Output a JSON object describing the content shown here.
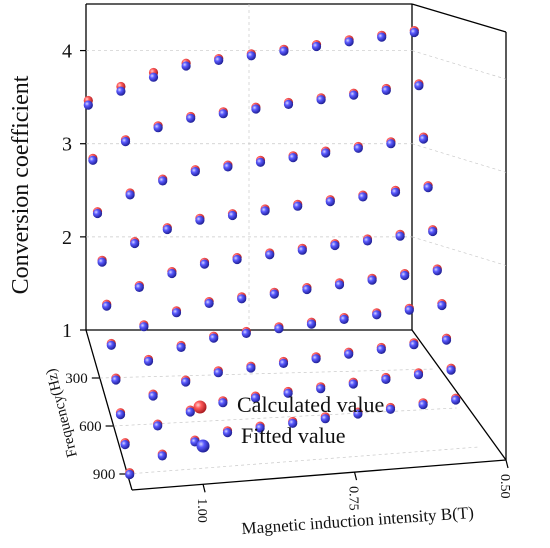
{
  "chart_data": {
    "type": "scatter",
    "dimensions": 3,
    "x_axis": {
      "label": "Magnetic induction intensity B(T)",
      "ticks": [
        "1.00",
        "0.75",
        "0.50"
      ],
      "range": [
        1.0,
        0.5
      ]
    },
    "y_axis": {
      "label": "Frequency(Hz)",
      "ticks": [
        "300",
        "600",
        "900"
      ],
      "range": [
        0,
        1000
      ]
    },
    "z_axis": {
      "label": "Conversion coefficient",
      "ticks": [
        "1",
        "2",
        "3",
        "4"
      ],
      "range": [
        1,
        4.5
      ]
    },
    "grid": true,
    "legend": {
      "position": "bottom-center",
      "entries": [
        "Calculated value",
        "Fitted value"
      ]
    },
    "series": [
      {
        "name": "Calculated value",
        "color": "#d9363b",
        "curves": [
          {
            "B": 1.0,
            "F": [
              50,
              150,
              250,
              350,
              450,
              550,
              650,
              750,
              850,
              950
            ],
            "z": [
              3.55,
              3.1,
              2.7,
              2.35,
              2.05,
              1.8,
              1.6,
              1.4,
              1.25,
              1.1
            ]
          },
          {
            "B": 0.95,
            "F": [
              50,
              150,
              250,
              350,
              450,
              550,
              650,
              750,
              850,
              950
            ],
            "z": [
              3.7,
              3.3,
              2.9,
              2.55,
              2.25,
              2.0,
              1.8,
              1.6,
              1.45,
              1.3
            ]
          },
          {
            "B": 0.9,
            "F": [
              50,
              150,
              250,
              350,
              450,
              550,
              650,
              750,
              850,
              950
            ],
            "z": [
              3.85,
              3.45,
              3.05,
              2.7,
              2.4,
              2.15,
              1.95,
              1.75,
              1.6,
              1.45
            ]
          },
          {
            "B": 0.85,
            "F": [
              50,
              150,
              250,
              350,
              450,
              550,
              650,
              750,
              850,
              950
            ],
            "z": [
              3.95,
              3.55,
              3.15,
              2.8,
              2.5,
              2.25,
              2.05,
              1.85,
              1.7,
              1.55
            ]
          },
          {
            "B": 0.8,
            "F": [
              50,
              150,
              250,
              350,
              450,
              550,
              650,
              750,
              850,
              950
            ],
            "z": [
              4.0,
              3.6,
              3.2,
              2.85,
              2.55,
              2.3,
              2.1,
              1.9,
              1.75,
              1.6
            ]
          },
          {
            "B": 0.75,
            "F": [
              50,
              150,
              250,
              350,
              450,
              550,
              650,
              750,
              850,
              950
            ],
            "z": [
              4.05,
              3.65,
              3.25,
              2.9,
              2.6,
              2.35,
              2.15,
              1.95,
              1.8,
              1.65
            ]
          },
          {
            "B": 0.7,
            "F": [
              50,
              150,
              250,
              350,
              450,
              550,
              650,
              750,
              850,
              950
            ],
            "z": [
              4.1,
              3.7,
              3.3,
              2.95,
              2.65,
              2.4,
              2.2,
              2.0,
              1.85,
              1.7
            ]
          },
          {
            "B": 0.65,
            "F": [
              50,
              150,
              250,
              350,
              450,
              550,
              650,
              750,
              850,
              950
            ],
            "z": [
              4.15,
              3.75,
              3.35,
              3.0,
              2.7,
              2.45,
              2.25,
              2.05,
              1.9,
              1.75
            ]
          },
          {
            "B": 0.6,
            "F": [
              50,
              150,
              250,
              350,
              450,
              550,
              650,
              750,
              850,
              950
            ],
            "z": [
              4.2,
              3.8,
              3.4,
              3.05,
              2.75,
              2.5,
              2.3,
              2.1,
              1.95,
              1.8
            ]
          },
          {
            "B": 0.55,
            "F": [
              50,
              150,
              250,
              350,
              450,
              550,
              650,
              750,
              850,
              950
            ],
            "z": [
              4.25,
              3.85,
              3.45,
              3.1,
              2.8,
              2.55,
              2.35,
              2.15,
              2.0,
              1.85
            ]
          },
          {
            "B": 0.5,
            "F": [
              50,
              150,
              250,
              350,
              450,
              550,
              650,
              750,
              850,
              950
            ],
            "z": [
              4.3,
              3.9,
              3.5,
              3.15,
              2.85,
              2.6,
              2.4,
              2.2,
              2.05,
              1.9
            ]
          }
        ]
      },
      {
        "name": "Fitted value",
        "color": "#3b3bd6",
        "curves": [
          {
            "B": 1.0,
            "F": [
              50,
              150,
              250,
              350,
              450,
              550,
              650,
              750,
              850,
              950
            ],
            "z": [
              3.5,
              3.08,
              2.68,
              2.33,
              2.03,
              1.78,
              1.58,
              1.38,
              1.23,
              1.08
            ]
          },
          {
            "B": 0.95,
            "F": [
              50,
              150,
              250,
              350,
              450,
              550,
              650,
              750,
              850,
              950
            ],
            "z": [
              3.65,
              3.28,
              2.88,
              2.53,
              2.23,
              1.98,
              1.78,
              1.58,
              1.43,
              1.28
            ]
          },
          {
            "B": 0.9,
            "F": [
              50,
              150,
              250,
              350,
              450,
              550,
              650,
              750,
              850,
              950
            ],
            "z": [
              3.8,
              3.43,
              3.03,
              2.68,
              2.38,
              2.13,
              1.93,
              1.73,
              1.58,
              1.43
            ]
          },
          {
            "B": 0.85,
            "F": [
              50,
              150,
              250,
              350,
              450,
              550,
              650,
              750,
              850,
              950
            ],
            "z": [
              3.92,
              3.53,
              3.13,
              2.78,
              2.48,
              2.23,
              2.03,
              1.83,
              1.68,
              1.53
            ]
          },
          {
            "B": 0.8,
            "F": [
              50,
              150,
              250,
              350,
              450,
              550,
              650,
              750,
              850,
              950
            ],
            "z": [
              3.98,
              3.58,
              3.18,
              2.83,
              2.53,
              2.28,
              2.08,
              1.88,
              1.73,
              1.58
            ]
          },
          {
            "B": 0.75,
            "F": [
              50,
              150,
              250,
              350,
              450,
              550,
              650,
              750,
              850,
              950
            ],
            "z": [
              4.03,
              3.63,
              3.23,
              2.88,
              2.58,
              2.33,
              2.13,
              1.93,
              1.78,
              1.63
            ]
          },
          {
            "B": 0.7,
            "F": [
              50,
              150,
              250,
              350,
              450,
              550,
              650,
              750,
              850,
              950
            ],
            "z": [
              4.08,
              3.68,
              3.28,
              2.93,
              2.63,
              2.38,
              2.18,
              1.98,
              1.83,
              1.68
            ]
          },
          {
            "B": 0.65,
            "F": [
              50,
              150,
              250,
              350,
              450,
              550,
              650,
              750,
              850,
              950
            ],
            "z": [
              4.13,
              3.73,
              3.33,
              2.98,
              2.68,
              2.43,
              2.23,
              2.03,
              1.88,
              1.73
            ]
          },
          {
            "B": 0.6,
            "F": [
              50,
              150,
              250,
              350,
              450,
              550,
              650,
              750,
              850,
              950
            ],
            "z": [
              4.18,
              3.78,
              3.38,
              3.03,
              2.73,
              2.48,
              2.28,
              2.08,
              1.93,
              1.78
            ]
          },
          {
            "B": 0.55,
            "F": [
              50,
              150,
              250,
              350,
              450,
              550,
              650,
              750,
              850,
              950
            ],
            "z": [
              4.23,
              3.83,
              3.43,
              3.08,
              2.78,
              2.53,
              2.33,
              2.13,
              1.98,
              1.83
            ]
          },
          {
            "B": 0.5,
            "F": [
              50,
              150,
              250,
              350,
              450,
              550,
              650,
              750,
              850,
              950
            ],
            "z": [
              4.28,
              3.88,
              3.48,
              3.13,
              2.83,
              2.58,
              2.38,
              2.18,
              2.03,
              1.88
            ]
          }
        ]
      }
    ]
  }
}
